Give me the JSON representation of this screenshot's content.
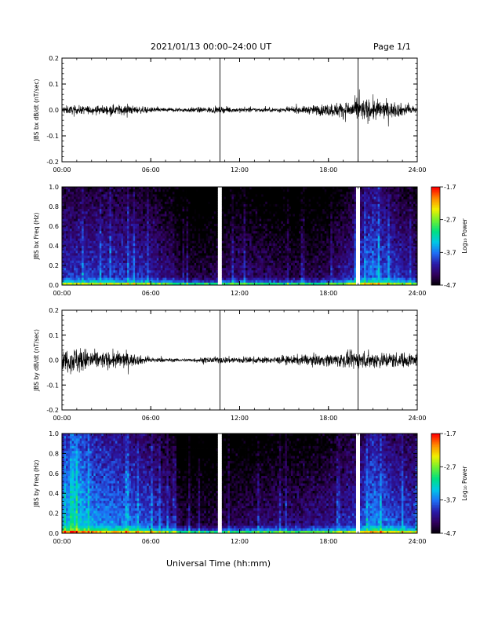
{
  "header": {
    "title": "2021/01/13  00:00–24:00 UT",
    "page_label": "Page 1/1"
  },
  "x_axis": {
    "label": "Universal Time (hh:mm)",
    "ticks": [
      "00:00",
      "06:00",
      "12:00",
      "18:00",
      "24:00"
    ],
    "range_hours": [
      0,
      24
    ]
  },
  "colorbar": {
    "label": "Log₁₀ Power",
    "ticks": [
      "-1.7",
      "-2.7",
      "-3.7",
      "-4.7"
    ],
    "range": [
      -4.7,
      -1.7
    ],
    "colormap": [
      "#000000",
      "#30005a",
      "#2a1aa8",
      "#1e6ef5",
      "#00c8e6",
      "#00e080",
      "#6ef030",
      "#f0f000",
      "#ff8c00",
      "#ff0000"
    ]
  },
  "chart_data": [
    {
      "type": "line",
      "panel": "bx-timeseries",
      "ylabel": "JBS bx dB/dt (nT/sec)",
      "ylim": [
        -0.2,
        0.2
      ],
      "yticks": [
        "0.2",
        "0.1",
        "0.0",
        "-0.1",
        "-0.2"
      ],
      "x_hours": [
        0,
        2,
        4,
        6,
        8,
        10,
        12,
        14,
        16,
        18,
        20,
        21,
        22,
        24
      ],
      "amplitude_envelope": [
        0.02,
        0.02,
        0.025,
        0.012,
        0.01,
        0.015,
        0.012,
        0.01,
        0.015,
        0.03,
        0.05,
        0.055,
        0.04,
        0.02
      ],
      "spikes": [
        {
          "hour": 10.67,
          "span": "full"
        },
        {
          "hour": 20.0,
          "span": "full"
        }
      ],
      "color": "#000000"
    },
    {
      "type": "heatmap",
      "panel": "bx-spectrogram",
      "ylabel": "JBS bx Freq (Hz)",
      "ylim": [
        0.0,
        1.0
      ],
      "yticks": [
        "1.0",
        "0.8",
        "0.6",
        "0.4",
        "0.2",
        "0.0"
      ],
      "x_hours": [
        0,
        2,
        4,
        6,
        7.5,
        8,
        10,
        12,
        14,
        16,
        18,
        20,
        21,
        22,
        24
      ],
      "power_level": [
        -3.9,
        -3.9,
        -3.9,
        -4.0,
        -4.2,
        -4.4,
        -4.4,
        -4.2,
        -4.3,
        -4.4,
        -4.3,
        -3.9,
        -3.6,
        -3.8,
        -4.1
      ],
      "gaps_hours": [
        10.67,
        20.0
      ],
      "zlim": [
        -4.7,
        -1.7
      ]
    },
    {
      "type": "line",
      "panel": "by-timeseries",
      "ylabel": "JBS by dB/dt (nT/sec)",
      "ylim": [
        -0.2,
        0.2
      ],
      "yticks": [
        "0.2",
        "0.1",
        "0.0",
        "-0.1",
        "-0.2"
      ],
      "x_hours": [
        0,
        1,
        2,
        3,
        4,
        5,
        6,
        7,
        8,
        10,
        12,
        14,
        16,
        18,
        20,
        22,
        24
      ],
      "amplitude_envelope": [
        0.05,
        0.07,
        0.05,
        0.04,
        0.045,
        0.025,
        0.015,
        0.01,
        0.008,
        0.015,
        0.018,
        0.015,
        0.025,
        0.03,
        0.045,
        0.04,
        0.035
      ],
      "spikes": [
        {
          "hour": 10.67,
          "span": "full"
        },
        {
          "hour": 20.0,
          "span": "full"
        }
      ],
      "color": "#000000"
    },
    {
      "type": "heatmap",
      "panel": "by-spectrogram",
      "ylabel": "JBS by Freq (Hz)",
      "ylim": [
        0.0,
        1.0
      ],
      "yticks": [
        "1.0",
        "0.8",
        "0.6",
        "0.4",
        "0.2",
        "0.0"
      ],
      "x_hours": [
        0,
        1,
        2,
        4,
        6,
        7.5,
        8,
        10,
        12,
        14,
        16,
        18,
        20,
        21,
        22,
        24
      ],
      "power_level": [
        -3.5,
        -3.2,
        -3.5,
        -3.6,
        -3.8,
        -4.1,
        -4.4,
        -4.4,
        -4.3,
        -4.2,
        -4.2,
        -4.1,
        -3.9,
        -3.5,
        -3.7,
        -3.9
      ],
      "gaps_hours": [
        10.67,
        20.0
      ],
      "zlim": [
        -4.7,
        -1.7
      ]
    }
  ]
}
